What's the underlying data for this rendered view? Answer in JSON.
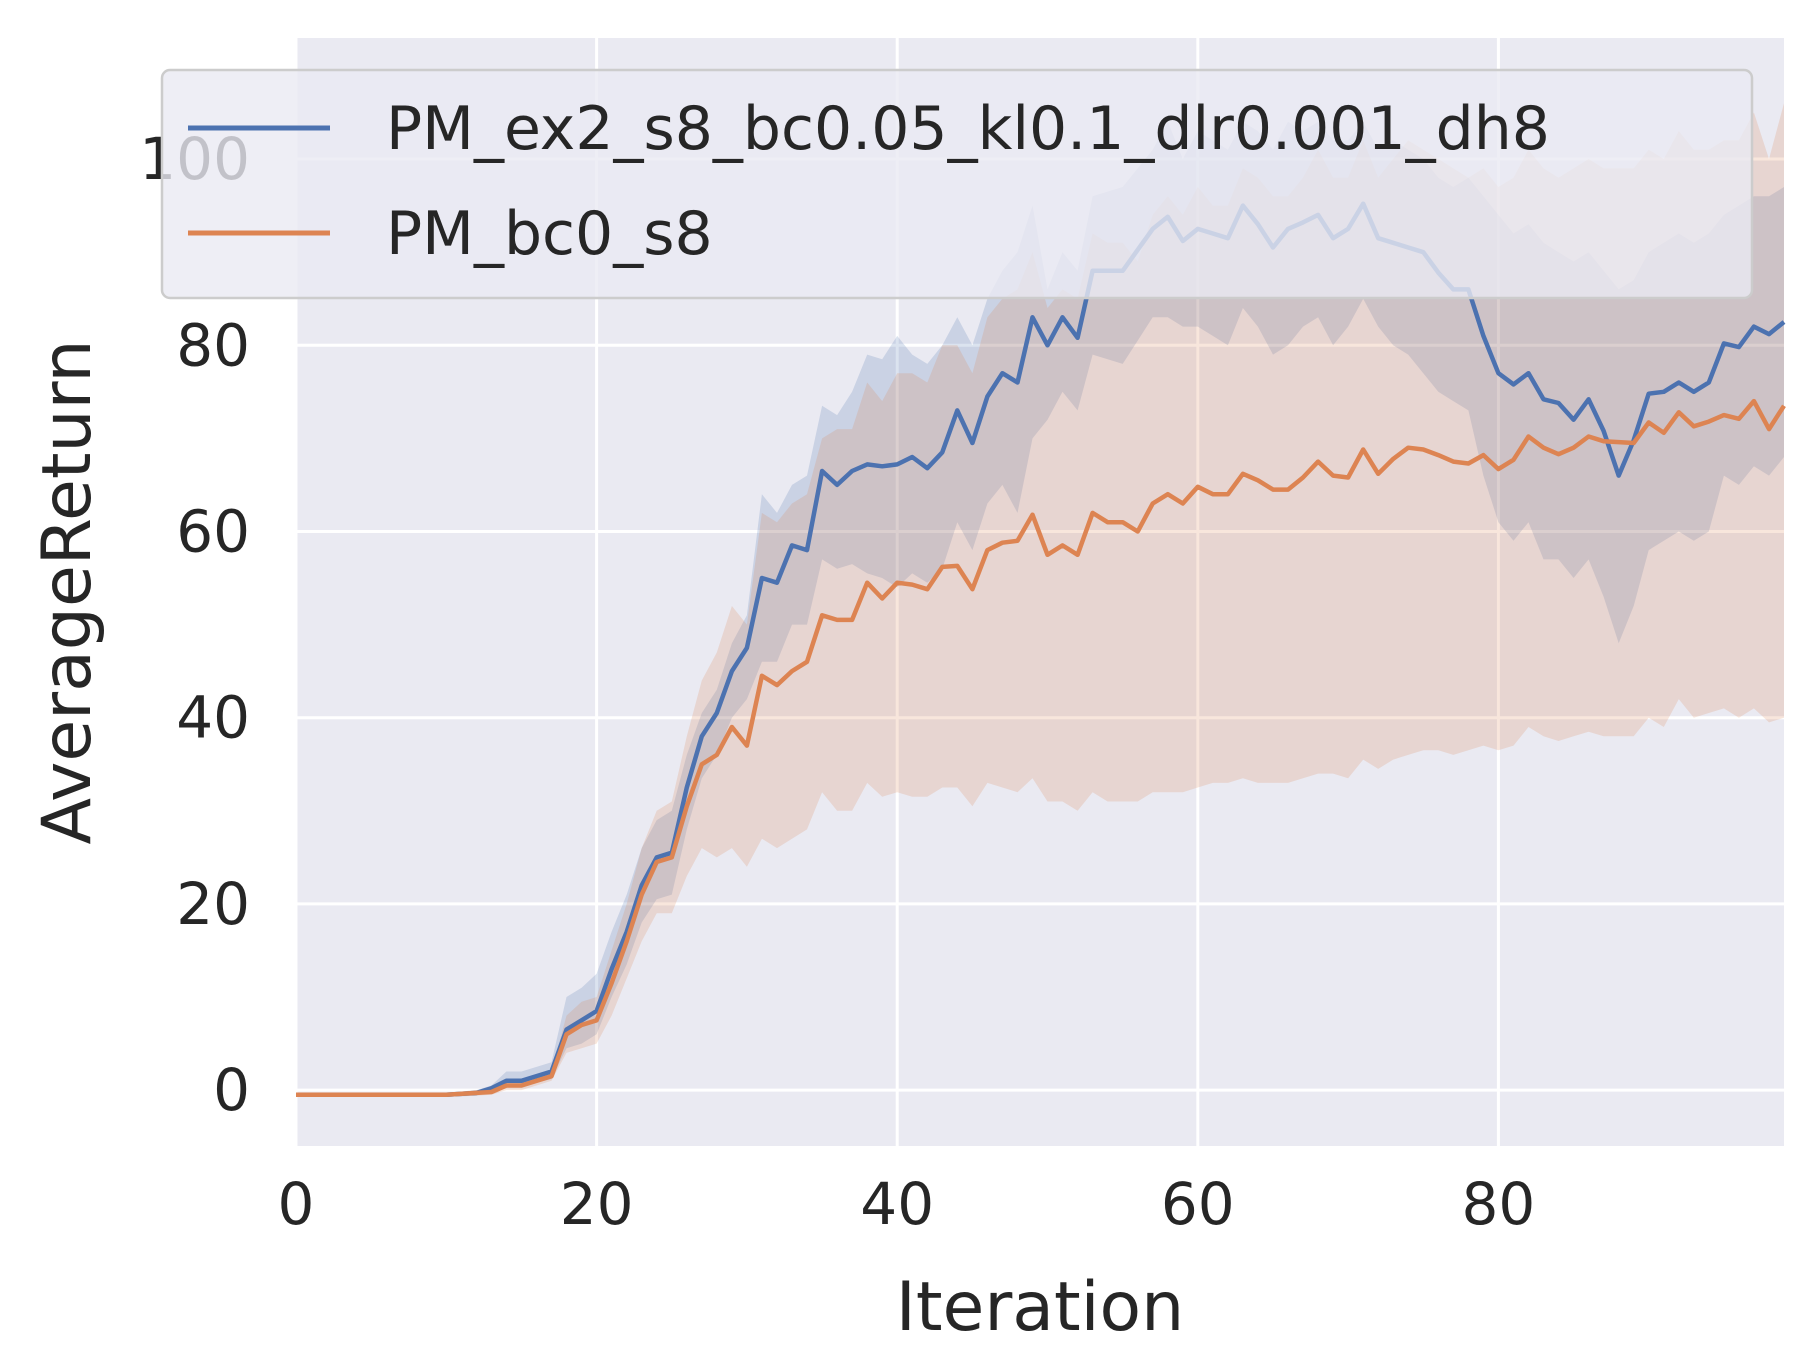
{
  "chart_data": {
    "type": "line",
    "title": "",
    "xlabel": "Iteration",
    "ylabel": "AverageReturn",
    "xlim": [
      0,
      99
    ],
    "ylim": [
      -6,
      113
    ],
    "x_ticks": [
      "0",
      "20",
      "40",
      "60",
      "80"
    ],
    "x_tick_values": [
      0,
      20,
      40,
      60,
      80
    ],
    "y_ticks": [
      "0",
      "20",
      "40",
      "60",
      "80",
      "100"
    ],
    "y_tick_values": [
      0,
      20,
      40,
      60,
      80,
      100
    ],
    "grid": true,
    "legend_position": "top",
    "background": "#eaeaf2",
    "series": [
      {
        "name": "PM_ex2_s8_bc0.05_kl0.1_dlr0.001_dh8",
        "color": "#4c72b0",
        "x": [
          0,
          5,
          10,
          12,
          13,
          14,
          15,
          16,
          17,
          18,
          19,
          20,
          21,
          22,
          23,
          24,
          25,
          26,
          27,
          28,
          29,
          30,
          31,
          32,
          33,
          34,
          35,
          36,
          37,
          38,
          39,
          40,
          41,
          42,
          43,
          44,
          45,
          46,
          47,
          48,
          49,
          50,
          51,
          52,
          53,
          55,
          57,
          58,
          59,
          60,
          61,
          62,
          63,
          64,
          65,
          66,
          67,
          68,
          69,
          70,
          71,
          72,
          73,
          74,
          75,
          76,
          77,
          78,
          79,
          80,
          81,
          82,
          83,
          84,
          85,
          86,
          87,
          88,
          89,
          90,
          91,
          92,
          93,
          94,
          95,
          96,
          97,
          98,
          99
        ],
        "y": [
          -0.5,
          -0.5,
          -0.5,
          -0.3,
          0.2,
          1.0,
          1.0,
          1.5,
          2.0,
          6.5,
          7.5,
          8.5,
          13.0,
          17.0,
          22.0,
          25.0,
          25.5,
          32.5,
          38.0,
          40.5,
          45.0,
          47.5,
          55.0,
          54.5,
          58.5,
          58.0,
          66.5,
          65.0,
          66.5,
          67.2,
          67.0,
          67.2,
          68.0,
          66.8,
          68.5,
          73.0,
          69.5,
          74.5,
          77.0,
          76.0,
          83.0,
          80.0,
          83.0,
          80.8,
          88.0,
          88.0,
          92.5,
          93.8,
          91.2,
          92.5,
          92.0,
          91.5,
          95.0,
          93.0,
          90.5,
          92.5,
          93.2,
          94.0,
          91.5,
          92.5,
          95.2,
          91.5,
          91.0,
          90.5,
          90.0,
          87.8,
          86.0,
          86.0,
          81.0,
          77.0,
          75.8,
          77.0,
          74.2,
          73.8,
          72.0,
          74.2,
          70.8,
          66.0,
          69.8,
          74.8,
          75.0,
          76.0,
          75.0,
          76.0,
          80.2,
          79.8,
          82.0,
          81.2,
          82.5
        ],
        "upper": [
          -0.3,
          -0.3,
          -0.3,
          0.0,
          0.5,
          2.0,
          2.0,
          2.5,
          3.0,
          10.0,
          11.0,
          12.5,
          17.0,
          21.0,
          26.0,
          29.0,
          30.0,
          36.0,
          40.5,
          43.0,
          48.0,
          51.0,
          64.0,
          62.0,
          65.0,
          66.0,
          73.5,
          72.5,
          75.0,
          79.0,
          78.5,
          81.0,
          79.0,
          78.0,
          80.0,
          83.0,
          80.0,
          85.0,
          88.0,
          90.0,
          95.0,
          86.0,
          90.0,
          88.0,
          96.0,
          97.0,
          101.0,
          104.0,
          100.0,
          103.0,
          102.0,
          101.0,
          104.0,
          103.0,
          101.0,
          104.0,
          103.0,
          104.0,
          102.0,
          102.0,
          104.0,
          101.0,
          102.0,
          101.0,
          100.0,
          98.0,
          97.0,
          98.0,
          96.0,
          94.0,
          92.0,
          93.0,
          91.0,
          90.0,
          89.0,
          90.0,
          88.0,
          86.0,
          87.0,
          90.0,
          91.0,
          92.0,
          91.0,
          92.0,
          94.0,
          95.0,
          96.0,
          96.0,
          97.0
        ],
        "lower": [
          -0.7,
          -0.7,
          -0.7,
          -0.6,
          -0.1,
          0.3,
          0.3,
          0.8,
          1.2,
          4.5,
          5.0,
          6.0,
          10.0,
          13.5,
          18.0,
          20.5,
          21.0,
          28.0,
          33.5,
          36.0,
          40.0,
          42.0,
          46.0,
          46.0,
          50.0,
          50.0,
          57.0,
          56.0,
          56.5,
          55.5,
          55.0,
          54.0,
          55.5,
          54.5,
          56.0,
          61.0,
          58.0,
          63.0,
          65.0,
          62.0,
          70.0,
          72.0,
          75.0,
          73.0,
          79.0,
          78.0,
          83.0,
          83.0,
          82.0,
          82.0,
          81.0,
          80.0,
          84.0,
          82.0,
          79.0,
          80.0,
          82.0,
          83.0,
          80.0,
          82.0,
          85.0,
          82.0,
          80.0,
          79.0,
          77.0,
          75.0,
          74.0,
          73.0,
          66.0,
          61.0,
          59.0,
          61.0,
          57.0,
          57.0,
          55.0,
          57.0,
          53.0,
          48.0,
          52.0,
          58.0,
          59.0,
          60.0,
          59.0,
          60.0,
          66.0,
          65.0,
          67.0,
          66.0,
          68.0
        ]
      },
      {
        "name": "PM_bc0_s8",
        "color": "#dd8452",
        "x": [
          0,
          5,
          10,
          12,
          13,
          14,
          15,
          16,
          17,
          18,
          19,
          20,
          21,
          22,
          23,
          24,
          25,
          26,
          27,
          28,
          29,
          30,
          31,
          32,
          33,
          34,
          35,
          36,
          37,
          38,
          39,
          40,
          41,
          42,
          43,
          44,
          45,
          46,
          47,
          48,
          49,
          50,
          51,
          52,
          53,
          54,
          55,
          56,
          57,
          58,
          59,
          60,
          61,
          62,
          63,
          64,
          65,
          66,
          67,
          68,
          69,
          70,
          71,
          72,
          73,
          74,
          75,
          76,
          77,
          78,
          79,
          80,
          81,
          82,
          83,
          84,
          85,
          86,
          87,
          88,
          89,
          90,
          91,
          92,
          93,
          94,
          95,
          96,
          97,
          98,
          99
        ],
        "y": [
          -0.5,
          -0.5,
          -0.5,
          -0.3,
          -0.2,
          0.5,
          0.5,
          1.0,
          1.5,
          6.0,
          7.0,
          7.5,
          11.5,
          16.0,
          21.0,
          24.5,
          25.0,
          30.5,
          35.0,
          36.0,
          39.0,
          37.0,
          44.5,
          43.5,
          45.0,
          46.0,
          51.0,
          50.5,
          50.5,
          54.5,
          52.8,
          54.5,
          54.3,
          53.8,
          56.2,
          56.3,
          53.8,
          58.0,
          58.8,
          59.0,
          61.8,
          57.5,
          58.5,
          57.5,
          62.0,
          61.0,
          61.0,
          60.0,
          63.0,
          64.0,
          63.0,
          64.8,
          64.0,
          64.0,
          66.2,
          65.5,
          64.5,
          64.5,
          65.8,
          67.5,
          66.0,
          65.8,
          68.8,
          66.2,
          67.8,
          69.0,
          68.8,
          68.2,
          67.5,
          67.3,
          68.2,
          66.7,
          67.7,
          70.2,
          69.0,
          68.3,
          69.0,
          70.2,
          69.7,
          69.6,
          69.5,
          71.7,
          70.6,
          72.8,
          71.3,
          71.8,
          72.5,
          72.1,
          74.0,
          71.0,
          73.5
        ],
        "upper": [
          -0.3,
          -0.3,
          -0.3,
          0.0,
          0.1,
          1.0,
          1.0,
          1.5,
          2.0,
          8.0,
          9.5,
          10.0,
          15.0,
          20.0,
          26.0,
          30.0,
          31.0,
          38.0,
          44.0,
          47.0,
          52.0,
          50.0,
          62.0,
          61.0,
          63.0,
          64.0,
          70.0,
          71.0,
          71.0,
          76.0,
          74.0,
          77.0,
          77.0,
          76.0,
          80.0,
          80.0,
          77.0,
          83.0,
          85.0,
          86.0,
          90.0,
          84.0,
          86.0,
          85.0,
          92.0,
          91.0,
          91.0,
          89.0,
          94.0,
          96.0,
          94.0,
          97.0,
          95.0,
          95.0,
          99.0,
          98.0,
          96.0,
          96.0,
          98.0,
          101.0,
          98.0,
          98.0,
          102.0,
          98.0,
          100.0,
          102.0,
          101.0,
          100.0,
          99.0,
          98.0,
          99.0,
          97.0,
          98.0,
          101.0,
          99.0,
          98.0,
          99.0,
          100.0,
          99.0,
          99.0,
          99.0,
          101.0,
          100.0,
          103.0,
          101.0,
          101.0,
          102.0,
          102.0,
          105.0,
          100.0,
          106.0
        ],
        "lower": [
          -0.7,
          -0.7,
          -0.7,
          -0.6,
          -0.5,
          0.0,
          0.0,
          0.5,
          1.0,
          4.0,
          4.5,
          5.0,
          8.0,
          12.0,
          16.0,
          19.0,
          19.0,
          23.0,
          26.0,
          25.0,
          26.0,
          24.0,
          27.0,
          26.0,
          27.0,
          28.0,
          32.0,
          30.0,
          30.0,
          33.0,
          31.5,
          32.0,
          31.5,
          31.5,
          32.5,
          32.5,
          30.5,
          33.0,
          32.5,
          32.0,
          33.5,
          31.0,
          31.0,
          30.0,
          32.0,
          31.0,
          31.0,
          31.0,
          32.0,
          32.0,
          32.0,
          32.5,
          33.0,
          33.0,
          33.5,
          33.0,
          33.0,
          33.0,
          33.5,
          34.0,
          34.0,
          33.5,
          35.5,
          34.5,
          35.5,
          36.0,
          36.5,
          36.5,
          36.0,
          36.5,
          37.0,
          36.5,
          37.0,
          39.0,
          38.0,
          37.5,
          38.0,
          38.5,
          38.0,
          38.0,
          38.0,
          40.0,
          39.0,
          42.0,
          40.0,
          40.5,
          41.0,
          40.0,
          41.0,
          39.5,
          40.0
        ]
      }
    ]
  }
}
